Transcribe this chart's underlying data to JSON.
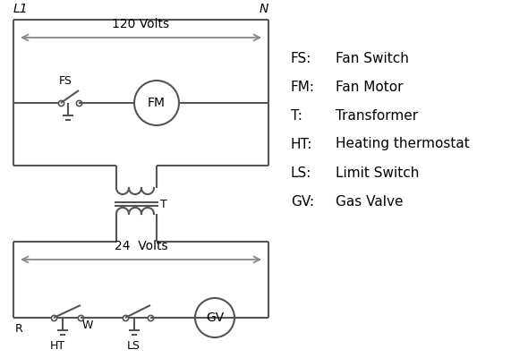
{
  "legend": {
    "FS": "Fan Switch",
    "FM": "Fan Motor",
    "T": "Transformer",
    "HT": "Heating thermostat",
    "LS": "Limit Switch",
    "GV": "Gas Valve"
  },
  "line_color": "#555555",
  "arrow_color": "#888888",
  "bg_color": "#ffffff",
  "text_color": "#000000",
  "label_color": "#1a1a1a"
}
